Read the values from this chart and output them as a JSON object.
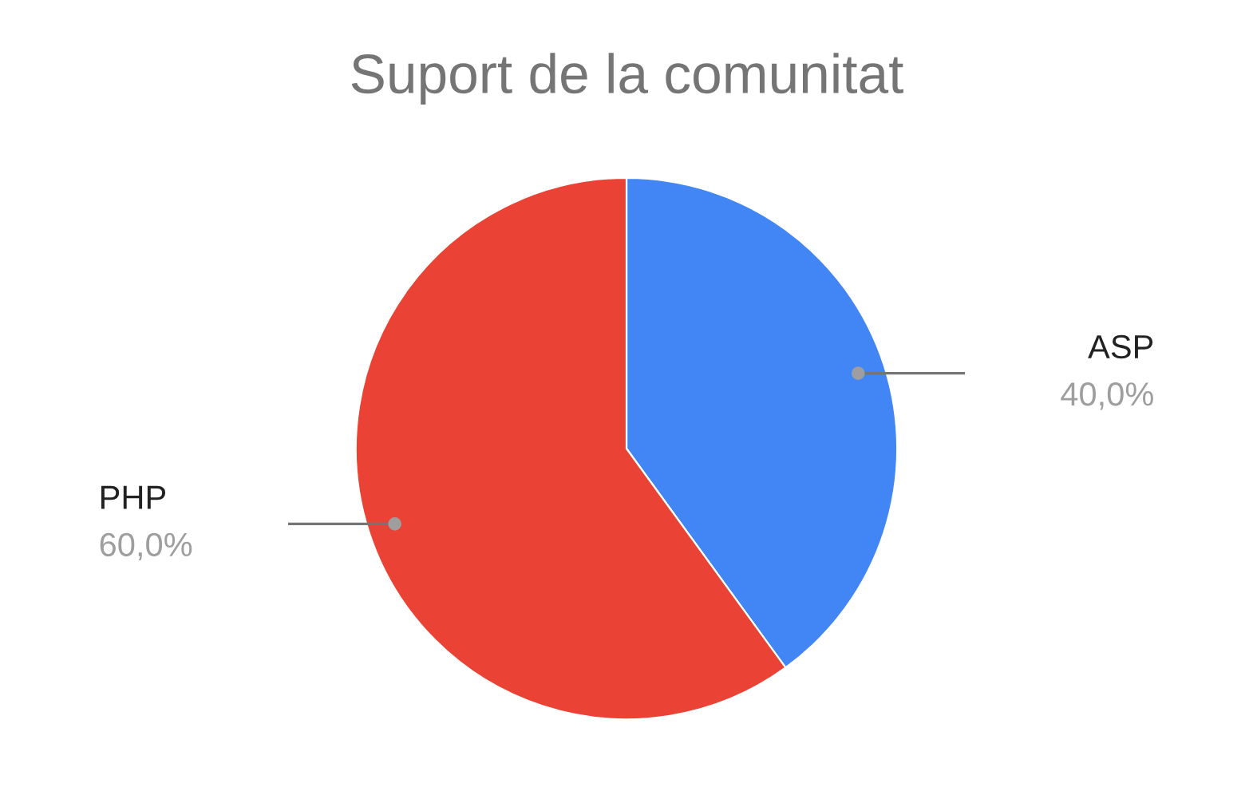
{
  "chart_data": {
    "type": "pie",
    "title": "Suport de la comunitat",
    "categories": [
      "ASP",
      "PHP"
    ],
    "values": [
      40,
      60
    ],
    "colors": [
      "#4285f4",
      "#ea4335"
    ],
    "value_labels": [
      "40,0%",
      "60,0%"
    ],
    "legend": false
  }
}
